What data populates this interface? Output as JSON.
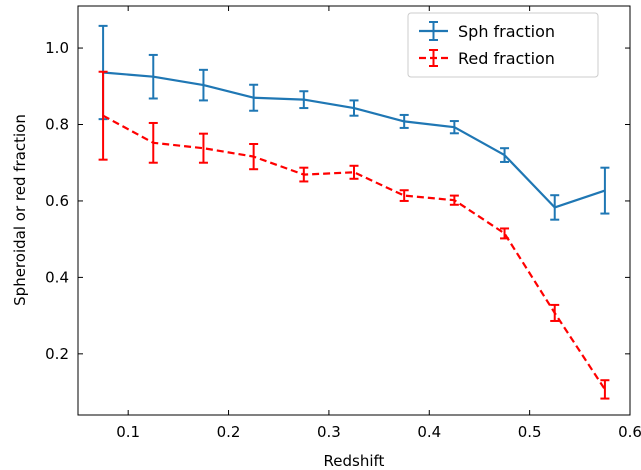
{
  "chart_data": {
    "type": "line",
    "xlabel": "Redshift",
    "ylabel": "Spheroidal or red fraction",
    "xlim": [
      0.05,
      0.6
    ],
    "ylim": [
      0.04,
      1.11
    ],
    "xticks": [
      0.1,
      0.2,
      0.3,
      0.4,
      0.5,
      0.6
    ],
    "xtick_labels": [
      "0.1",
      "0.2",
      "0.3",
      "0.4",
      "0.5",
      "0.6"
    ],
    "yticks": [
      0.2,
      0.4,
      0.6,
      0.8,
      1.0
    ],
    "ytick_labels": [
      "0.2",
      "0.4",
      "0.6",
      "0.8",
      "1.0"
    ],
    "legend_position": "top-right",
    "x": [
      0.075,
      0.125,
      0.175,
      0.225,
      0.275,
      0.325,
      0.375,
      0.425,
      0.475,
      0.525,
      0.575
    ],
    "series": [
      {
        "name": "Sph fraction",
        "color": "#1f77b4",
        "style": "solid",
        "values": [
          0.936,
          0.925,
          0.903,
          0.87,
          0.865,
          0.843,
          0.808,
          0.793,
          0.72,
          0.583,
          0.627
        ],
        "yerr": [
          0.122,
          0.057,
          0.04,
          0.034,
          0.022,
          0.02,
          0.017,
          0.016,
          0.018,
          0.032,
          0.06
        ]
      },
      {
        "name": "Red fraction",
        "color": "#ff0000",
        "style": "dashed",
        "values": [
          0.823,
          0.752,
          0.738,
          0.716,
          0.669,
          0.675,
          0.614,
          0.602,
          0.515,
          0.307,
          0.107
        ],
        "yerr": [
          0.115,
          0.052,
          0.038,
          0.033,
          0.018,
          0.017,
          0.014,
          0.012,
          0.013,
          0.021,
          0.024
        ]
      }
    ]
  }
}
